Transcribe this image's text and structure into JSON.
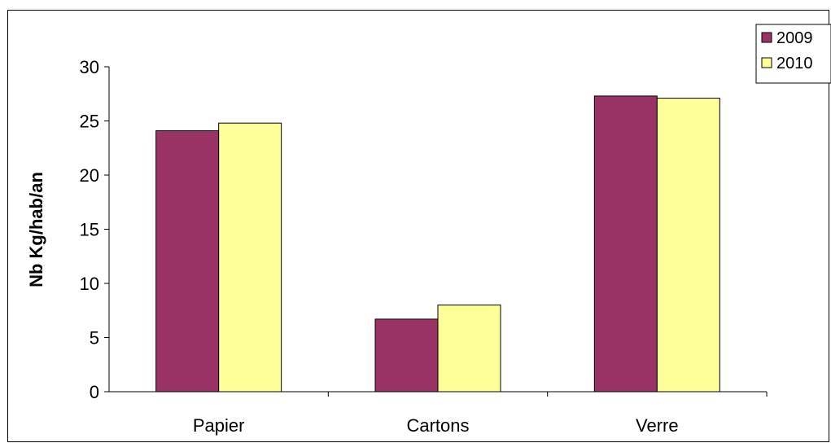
{
  "chart_data": {
    "type": "bar",
    "title": "",
    "xlabel": "",
    "ylabel": "Nb Kg/hab/an",
    "categories": [
      "Papier",
      "Cartons",
      "Verre"
    ],
    "series": [
      {
        "name": "2009",
        "values": [
          24.1,
          6.7,
          27.3
        ],
        "color": "#993366"
      },
      {
        "name": "2010",
        "values": [
          24.8,
          8.0,
          27.1
        ],
        "color": "#FFFF99"
      }
    ],
    "ylim": [
      0,
      30
    ],
    "yticks": [
      0,
      5,
      10,
      15,
      20,
      25,
      30
    ],
    "grid": false,
    "legend_position": "top-right"
  }
}
